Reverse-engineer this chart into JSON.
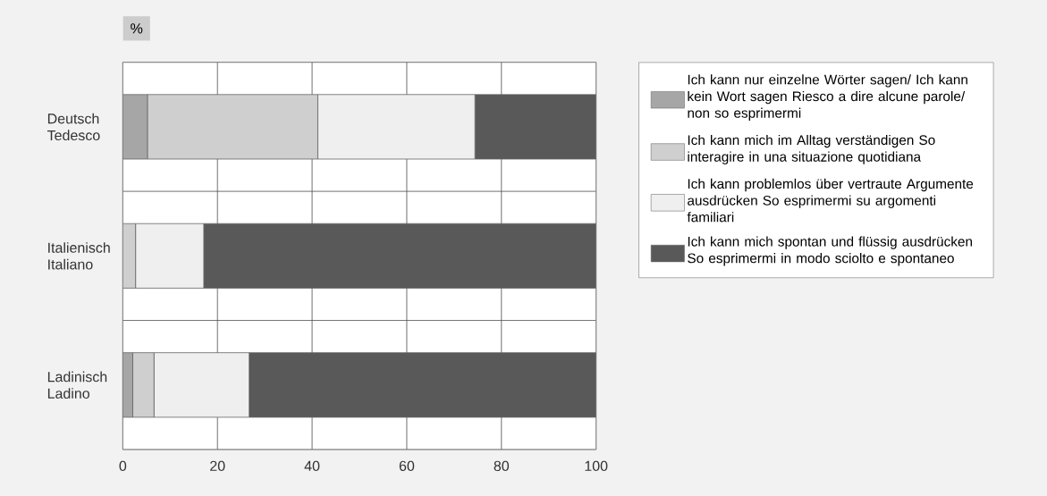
{
  "chart_data": {
    "type": "bar",
    "orientation": "horizontal",
    "stacked": true,
    "xlabel": "%",
    "categories": [
      "Deutsch Tedesco",
      "Italienisch Italiano",
      "Ladinisch Ladino"
    ],
    "series": [
      {
        "name": "Ich kann nur einzelne Wörter sagen/ Ich kann kein Wort sagen Riesco a dire alcune parole/ non so esprimermi",
        "color": "#a6a6a6",
        "values": [
          5.2,
          0,
          2.1
        ]
      },
      {
        "name": "Ich kann mich im Alltag verständigen So interagire in una situazione quotidiana",
        "color": "#cfcfcf",
        "values": [
          36.0,
          2.7,
          4.5
        ]
      },
      {
        "name": "Ich kann problemlos über vertraute Argumente ausdrücken So esprimermi su argomenti familiari",
        "color": "#efefef",
        "values": [
          33.2,
          14.4,
          20.1
        ]
      },
      {
        "name": "Ich kann mich spontan und flüssig ausdrücken So esprimermi in modo sciolto e spontaneo",
        "color": "#595959",
        "values": [
          25.6,
          82.9,
          73.3
        ]
      }
    ],
    "xlim": [
      0,
      100
    ],
    "xticks": [
      0,
      20,
      40,
      60,
      80,
      100
    ],
    "grid": true,
    "legend": "right"
  }
}
